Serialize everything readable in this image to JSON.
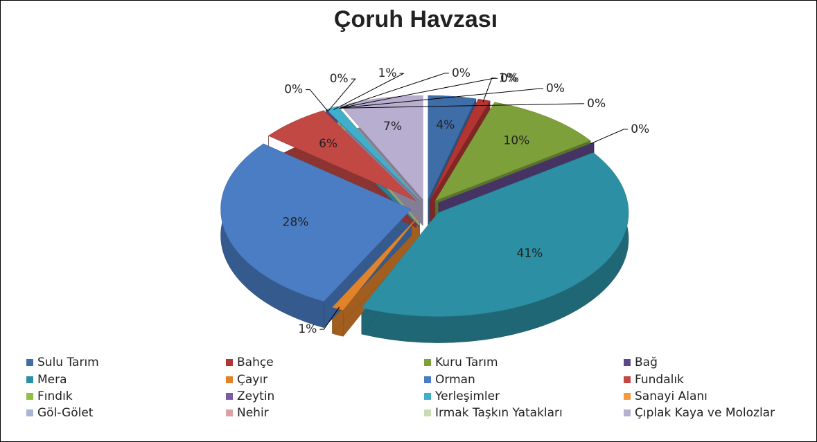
{
  "chart_data": {
    "type": "pie",
    "title": "Çoruh Havzası",
    "categories": [
      "Sulu Tarım",
      "Bahçe",
      "Kuru Tarım",
      "Bağ",
      "Mera",
      "Çayır",
      "Orman",
      "Fundalık",
      "Fındık",
      "Zeytin",
      "Yerleşimler",
      "Sanayi Alanı",
      "Göl-Gölet",
      "Nehir",
      "Irmak Taşkın Yatakları",
      "Çıplak Kaya ve Molozlar"
    ],
    "values": [
      4,
      1,
      10,
      0,
      41,
      1,
      28,
      6,
      0,
      0,
      1,
      0,
      0,
      0,
      0,
      7
    ],
    "value_labels": [
      "4%",
      "1%",
      "10%",
      "0%",
      "41%",
      "1%",
      "28%",
      "6%",
      "0%",
      "0%",
      "1%",
      "0%",
      "0%",
      "0%",
      "0%",
      "7%"
    ],
    "colors": [
      "#3e6da8",
      "#b23532",
      "#7ea03a",
      "#5e4789",
      "#2d8fa3",
      "#e0832a",
      "#4a7dc4",
      "#c24844",
      "#92bf45",
      "#7c5aa6",
      "#3fb0cb",
      "#f39a3d",
      "#a8b4d8",
      "#dca2a1",
      "#c7dcb0",
      "#b8aed0"
    ]
  }
}
